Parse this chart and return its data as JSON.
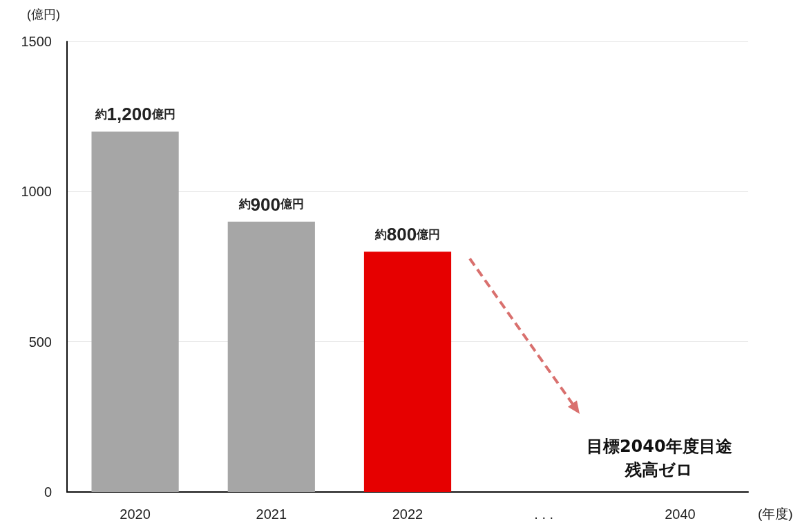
{
  "chart_data": {
    "type": "bar",
    "categories": [
      "2020",
      "2021",
      "2022",
      ". . .",
      "2040"
    ],
    "values": [
      1200,
      900,
      800,
      null,
      null
    ],
    "colors": [
      "#a6a6a6",
      "#a6a6a6",
      "#e60000",
      null,
      null
    ],
    "value_labels": [
      "約1,200億円",
      "約900億円",
      "約800億円",
      null,
      null
    ],
    "ylabel": "(億円)",
    "xlabel": "(年度)",
    "ylim": [
      0,
      1500
    ],
    "yticks": [
      0,
      500,
      1000,
      1500
    ],
    "grid": "y",
    "annotations": [
      "目標2040年度目途",
      "残高ゼロ"
    ]
  }
}
